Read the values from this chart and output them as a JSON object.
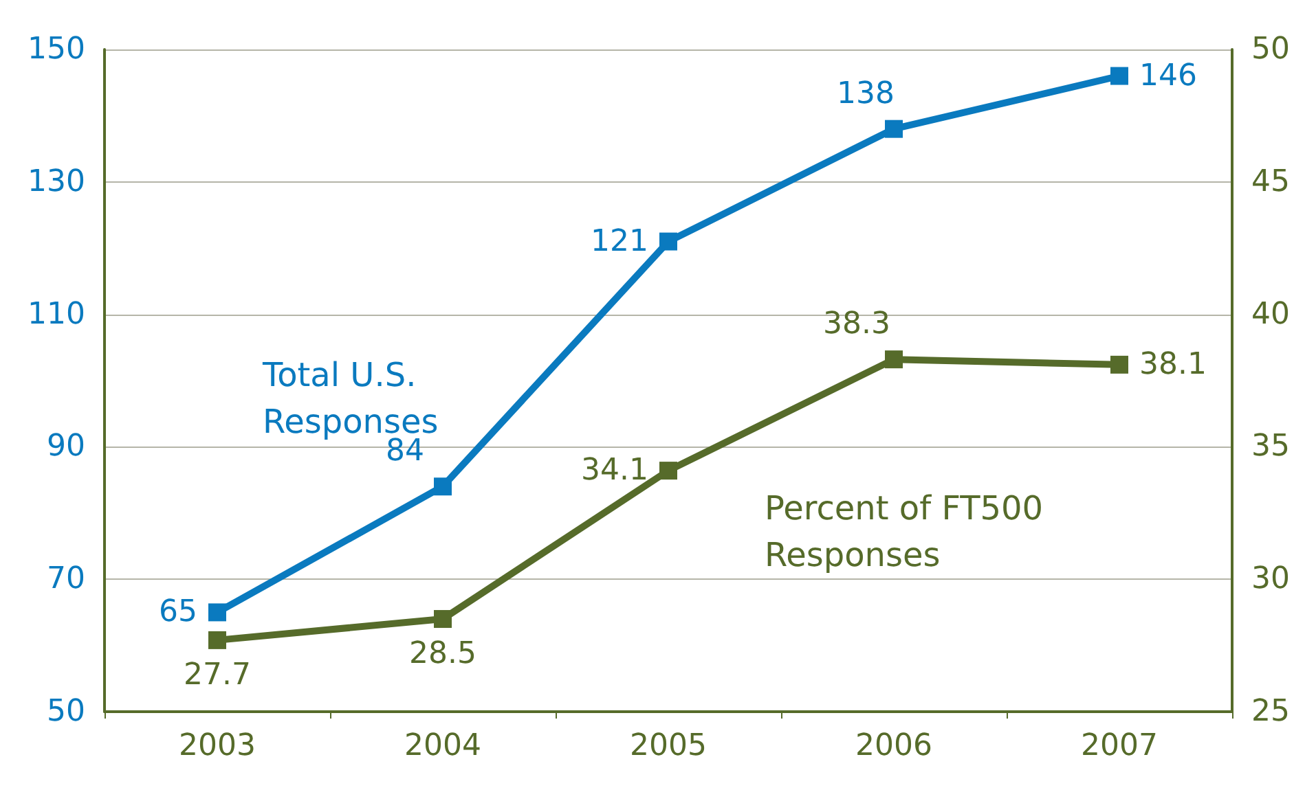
{
  "chart_data": {
    "type": "line",
    "categories": [
      "2003",
      "2004",
      "2005",
      "2006",
      "2007"
    ],
    "series": [
      {
        "name": "Total U.S. Responses",
        "color": "#0a7abf",
        "values": [
          65,
          84,
          121,
          138,
          146
        ]
      },
      {
        "name": "Percent of FT500 Responses",
        "color": "#566b2a",
        "values": [
          27.7,
          28.5,
          34.1,
          38.3,
          38.1
        ],
        "axis": "y2"
      }
    ],
    "ylim": [
      50,
      150
    ],
    "yticks": [
      50,
      70,
      90,
      110,
      130,
      150
    ],
    "y2lim": [
      25,
      50
    ],
    "y2ticks": [
      25,
      30,
      35,
      40,
      45,
      50
    ],
    "grid": "y",
    "legend": false,
    "marker": "square",
    "line_style": "solid",
    "data_labels": true
  }
}
